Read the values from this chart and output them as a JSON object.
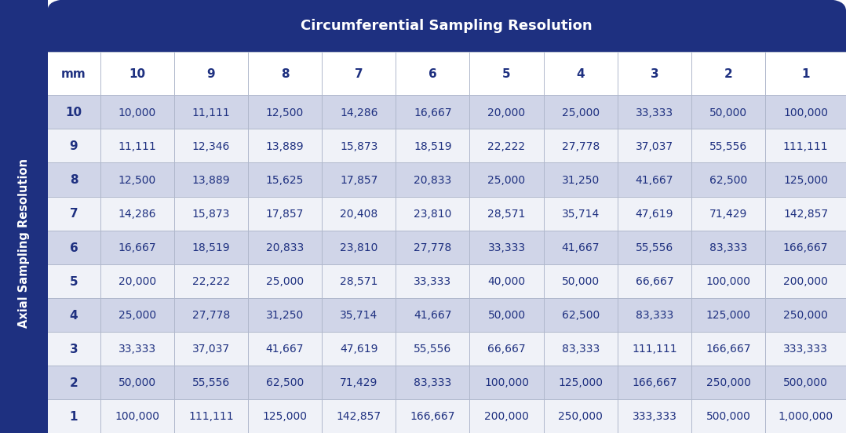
{
  "title": "Circumferential Sampling Resolution",
  "col_header": [
    "mm",
    "10",
    "9",
    "8",
    "7",
    "6",
    "5",
    "4",
    "3",
    "2",
    "1"
  ],
  "row_labels": [
    "10",
    "9",
    "8",
    "7",
    "6",
    "5",
    "4",
    "3",
    "2",
    "1"
  ],
  "table_data": [
    [
      "10,000",
      "11,111",
      "12,500",
      "14,286",
      "16,667",
      "20,000",
      "25,000",
      "33,333",
      "50,000",
      "100,000"
    ],
    [
      "11,111",
      "12,346",
      "13,889",
      "15,873",
      "18,519",
      "22,222",
      "27,778",
      "37,037",
      "55,556",
      "111,111"
    ],
    [
      "12,500",
      "13,889",
      "15,625",
      "17,857",
      "20,833",
      "25,000",
      "31,250",
      "41,667",
      "62,500",
      "125,000"
    ],
    [
      "14,286",
      "15,873",
      "17,857",
      "20,408",
      "23,810",
      "28,571",
      "35,714",
      "47,619",
      "71,429",
      "142,857"
    ],
    [
      "16,667",
      "18,519",
      "20,833",
      "23,810",
      "27,778",
      "33,333",
      "41,667",
      "55,556",
      "83,333",
      "166,667"
    ],
    [
      "20,000",
      "22,222",
      "25,000",
      "28,571",
      "33,333",
      "40,000",
      "50,000",
      "66,667",
      "100,000",
      "200,000"
    ],
    [
      "25,000",
      "27,778",
      "31,250",
      "35,714",
      "41,667",
      "50,000",
      "62,500",
      "83,333",
      "125,000",
      "250,000"
    ],
    [
      "33,333",
      "37,037",
      "41,667",
      "47,619",
      "55,556",
      "66,667",
      "83,333",
      "111,111",
      "166,667",
      "333,333"
    ],
    [
      "50,000",
      "55,556",
      "62,500",
      "71,429",
      "83,333",
      "100,000",
      "125,000",
      "166,667",
      "250,000",
      "500,000"
    ],
    [
      "100,000",
      "111,111",
      "125,000",
      "142,857",
      "166,667",
      "200,000",
      "250,000",
      "333,333",
      "500,000",
      "1,000,000"
    ]
  ],
  "side_label": "Axial Sampling Resolution",
  "header_bg": "#1e3080",
  "header_text": "#ffffff",
  "row_gray_bg": "#d0d5e8",
  "row_white_bg": "#f0f2f8",
  "border_color": "#b0b8cc",
  "text_color": "#1e3080",
  "side_label_bg": "#1e3080",
  "side_label_text": "#ffffff",
  "outer_bg": "#1e3080",
  "title_fontsize": 13,
  "header_fontsize": 11,
  "cell_fontsize": 10,
  "side_fontsize": 10.5
}
